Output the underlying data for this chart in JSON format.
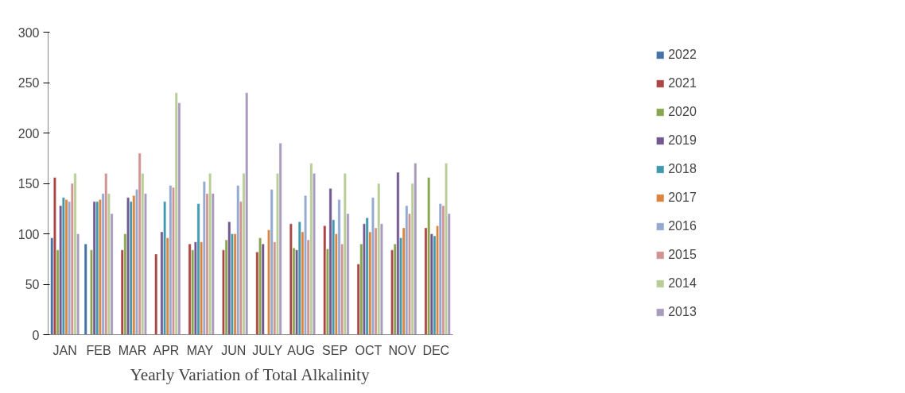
{
  "chart_data": {
    "type": "bar",
    "title": "Yearly Variation of Total Alkalinity",
    "categories": [
      "JAN",
      "FEB",
      "MAR",
      "APR",
      "MAY",
      "JUN",
      "JULY",
      "AUG",
      "SEP",
      "OCT",
      "NOV",
      "DEC"
    ],
    "series": [
      {
        "name": "2022",
        "color": "#4572a7",
        "values": [
          96,
          90,
          null,
          null,
          null,
          null,
          null,
          null,
          null,
          null,
          null,
          null
        ]
      },
      {
        "name": "2021",
        "color": "#aa4643",
        "values": [
          156,
          null,
          84,
          80,
          90,
          84,
          82,
          110,
          108,
          70,
          84,
          106
        ]
      },
      {
        "name": "2020",
        "color": "#89a54e",
        "values": [
          84,
          84,
          100,
          null,
          84,
          94,
          96,
          86,
          85,
          90,
          90,
          156
        ]
      },
      {
        "name": "2019",
        "color": "#71588f",
        "values": [
          128,
          132,
          136,
          102,
          92,
          112,
          90,
          84,
          145,
          110,
          161,
          100
        ]
      },
      {
        "name": "2018",
        "color": "#4198af",
        "values": [
          136,
          132,
          132,
          132,
          130,
          100,
          null,
          112,
          114,
          116,
          96,
          98
        ]
      },
      {
        "name": "2017",
        "color": "#db843d",
        "values": [
          134,
          134,
          138,
          96,
          92,
          100,
          104,
          102,
          100,
          102,
          106,
          108
        ]
      },
      {
        "name": "2016",
        "color": "#93a9cf",
        "values": [
          132,
          140,
          144,
          148,
          152,
          148,
          144,
          138,
          134,
          136,
          128,
          130
        ]
      },
      {
        "name": "2015",
        "color": "#d19392",
        "values": [
          150,
          160,
          180,
          146,
          140,
          132,
          92,
          94,
          90,
          106,
          120,
          128
        ]
      },
      {
        "name": "2014",
        "color": "#b9cd96",
        "values": [
          160,
          140,
          160,
          240,
          160,
          160,
          160,
          170,
          160,
          150,
          150,
          170
        ]
      },
      {
        "name": "2013",
        "color": "#a99bbd",
        "values": [
          100,
          120,
          140,
          230,
          140,
          240,
          190,
          160,
          120,
          110,
          170,
          120
        ]
      }
    ],
    "ylim": [
      0,
      300
    ],
    "yticks": [
      0,
      50,
      100,
      150,
      200,
      250,
      300
    ],
    "grid": false,
    "legend": "right"
  }
}
